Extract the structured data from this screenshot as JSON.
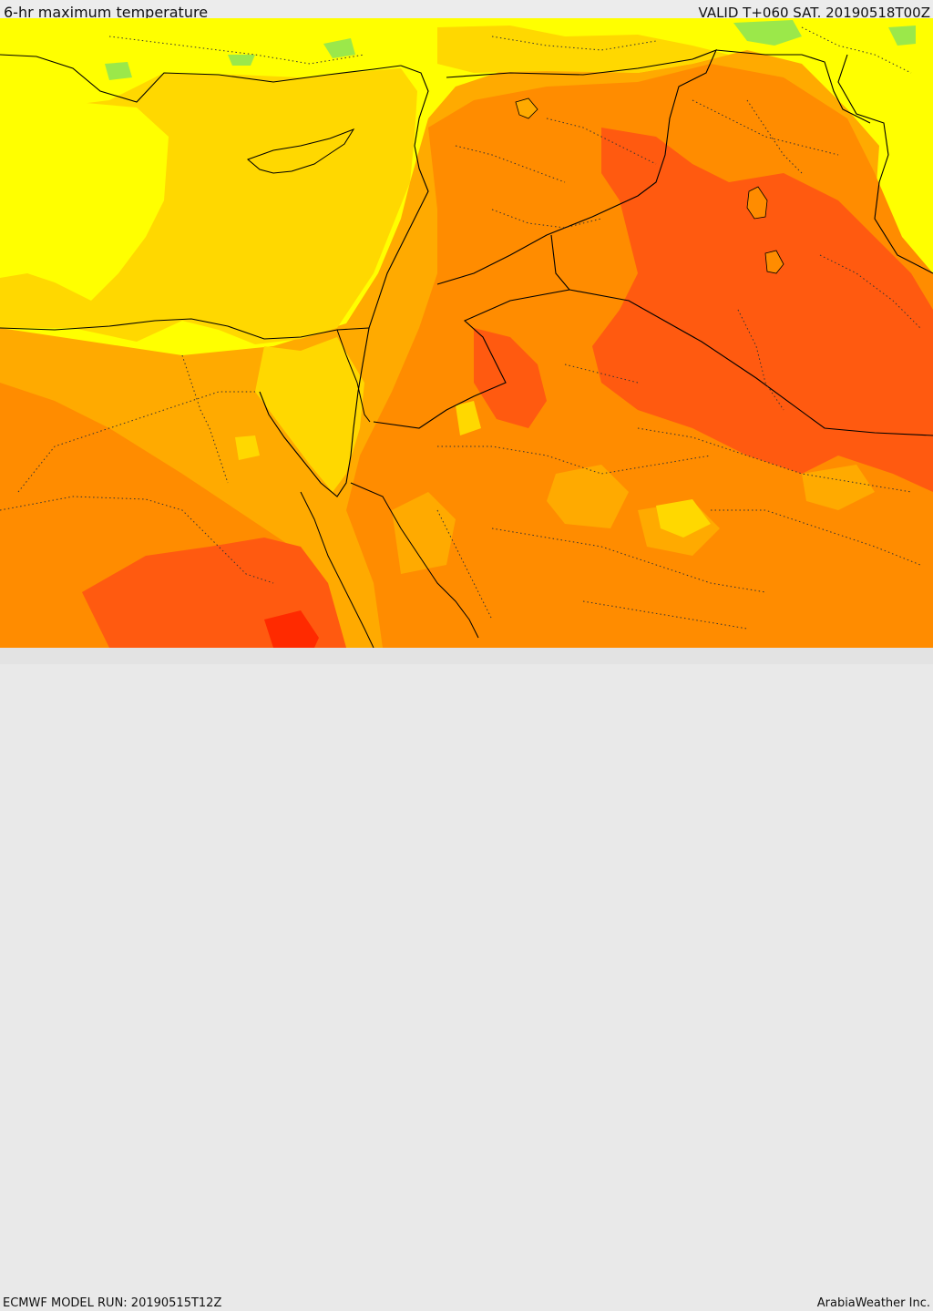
{
  "header": {
    "title": "6-hr maximum temperature",
    "valid": "VALID T+060 SAT. 20190518T00Z"
  },
  "footer": {
    "model_run": "ECMWF MODEL RUN: 20190515T12Z",
    "credit": "ArabiaWeather Inc."
  },
  "colors": {
    "coolest": "#9be84a",
    "cool": "#ffff00",
    "mild": "#ffd800",
    "warm": "#ffaa00",
    "hot": "#ff8c00",
    "very_hot": "#ff5a10",
    "extreme": "#ff2a00",
    "border": "#000000"
  }
}
